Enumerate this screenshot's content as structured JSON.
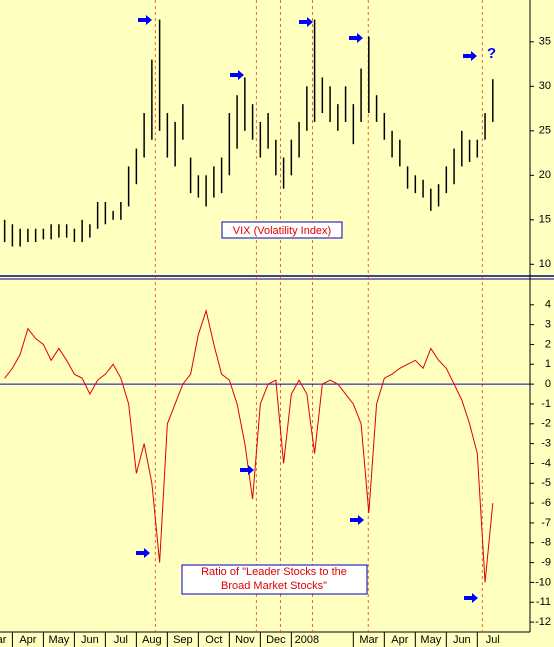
{
  "chart_data": [
    {
      "type": "range_bar",
      "label": "VIX (Volatility Index)",
      "annotation": "?",
      "color": "#000000",
      "x": [
        0.75,
        1,
        1.25,
        1.5,
        1.75,
        2,
        2.25,
        2.5,
        2.75,
        3,
        3.25,
        3.5,
        3.75,
        4,
        4.25,
        4.5,
        4.75,
        5,
        5.25,
        5.5,
        5.75,
        6,
        6.25,
        6.5,
        6.75,
        7,
        7.25,
        7.5,
        7.75,
        8,
        8.25,
        8.5,
        8.75,
        9,
        9.25,
        9.5,
        9.75,
        10,
        10.25,
        10.5,
        10.75,
        11,
        11.25,
        11.5,
        11.75,
        12,
        12.25,
        12.5,
        12.75,
        13,
        13.25,
        13.5,
        13.75,
        14,
        14.25,
        14.5,
        14.75,
        15,
        15.25,
        15.5,
        15.75,
        16,
        16.25,
        16.5
      ],
      "high": [
        15,
        14.5,
        14,
        14,
        14,
        14,
        14.5,
        14.5,
        14.5,
        14,
        15,
        14.5,
        17,
        17,
        16,
        17,
        21,
        23,
        27,
        33,
        37.5,
        27,
        26,
        28,
        22,
        20,
        20,
        21,
        22,
        27,
        29,
        31,
        28,
        26,
        27,
        24,
        22,
        24,
        26,
        30,
        37.5,
        31,
        30,
        28,
        30,
        28,
        32,
        35.6,
        29,
        27,
        25,
        24,
        21,
        20,
        19.5,
        18.5,
        19,
        21,
        23,
        25,
        24,
        24,
        27,
        30.8
      ],
      "low": [
        12.5,
        12,
        12,
        12.5,
        12.5,
        12.8,
        12.8,
        13,
        13,
        12.5,
        12.5,
        13,
        14,
        14.5,
        15,
        15,
        16.5,
        19,
        22,
        24,
        25,
        22,
        21,
        24,
        18,
        17.5,
        16.5,
        17.5,
        18,
        20,
        23,
        25,
        24,
        22,
        23,
        20,
        18.5,
        20,
        22,
        25,
        26,
        27,
        26,
        25,
        26,
        23.5,
        26,
        27,
        26,
        24,
        22,
        21,
        18.5,
        18,
        17.5,
        16,
        16.5,
        18,
        19,
        21,
        21.5,
        22,
        24,
        26
      ],
      "xlim": [
        0.6,
        17.7
      ],
      "ylim": [
        8.8,
        39.7
      ],
      "yticks": [
        10,
        15,
        20,
        25,
        30,
        35
      ],
      "vlines": [
        5.61,
        8.87,
        9.65,
        10.68,
        12.48,
        16.16
      ]
    },
    {
      "type": "line",
      "label": [
        "Ratio of  \"Leader Stocks to the",
        "Broad Market Stocks\""
      ],
      "color": "#e00000",
      "x": [
        0.75,
        1,
        1.25,
        1.5,
        1.75,
        2,
        2.25,
        2.5,
        2.75,
        3,
        3.25,
        3.5,
        3.75,
        4,
        4.25,
        4.5,
        4.75,
        5,
        5.25,
        5.5,
        5.75,
        6,
        6.25,
        6.5,
        6.75,
        7,
        7.25,
        7.5,
        7.75,
        8,
        8.25,
        8.5,
        8.75,
        9,
        9.25,
        9.5,
        9.75,
        10,
        10.25,
        10.5,
        10.75,
        11,
        11.25,
        11.5,
        11.75,
        12,
        12.25,
        12.5,
        12.75,
        13,
        13.25,
        13.5,
        13.75,
        14,
        14.25,
        14.5,
        14.75,
        15,
        15.25,
        15.5,
        15.75,
        16,
        16.25,
        16.5
      ],
      "values": [
        0.3,
        0.8,
        1.5,
        2.8,
        2.3,
        2.0,
        1.2,
        1.8,
        1.2,
        0.5,
        0.3,
        -0.5,
        0.2,
        0.5,
        1.0,
        0.3,
        -1.0,
        -4.5,
        -3.0,
        -5,
        -9,
        -2,
        -1.0,
        0,
        0.5,
        2.5,
        3.7,
        2.0,
        0.5,
        0.2,
        -1,
        -3,
        -5.8,
        -1,
        0,
        0.2,
        -4,
        -0.5,
        0.2,
        -0.5,
        -3.5,
        0,
        0.2,
        0,
        -0.5,
        -1,
        -2,
        -6.5,
        -1,
        0.3,
        0.5,
        0.8,
        1.0,
        1.2,
        0.8,
        1.8,
        1.2,
        0.8,
        0,
        -0.8,
        -2,
        -3.5,
        -10,
        -6
      ],
      "reference_line": 0,
      "xlim": [
        0.6,
        17.7
      ],
      "ylim": [
        -12.5,
        5.2
      ],
      "yticks": [
        4,
        3,
        2,
        1,
        0,
        -1,
        -2,
        -3,
        -4,
        -5,
        -6,
        -7,
        -8,
        -9,
        -10,
        -11,
        -12
      ],
      "xticks": [
        {
          "value": 0.5,
          "label": "Mar"
        },
        {
          "value": 1.5,
          "label": "Apr"
        },
        {
          "value": 2.5,
          "label": "May"
        },
        {
          "value": 3.5,
          "label": "Jun"
        },
        {
          "value": 4.5,
          "label": "Jul"
        },
        {
          "value": 5.5,
          "label": "Aug"
        },
        {
          "value": 6.5,
          "label": "Sep"
        },
        {
          "value": 7.5,
          "label": "Oct"
        },
        {
          "value": 8.5,
          "label": "Nov"
        },
        {
          "value": 9.5,
          "label": "Dec"
        },
        {
          "value": 10.5,
          "label": "2008"
        },
        {
          "value": 12.5,
          "label": "Mar"
        },
        {
          "value": 13.5,
          "label": "Apr"
        },
        {
          "value": 14.5,
          "label": "May"
        },
        {
          "value": 15.5,
          "label": "Jun"
        },
        {
          "value": 16.5,
          "label": "Jul"
        }
      ]
    }
  ]
}
